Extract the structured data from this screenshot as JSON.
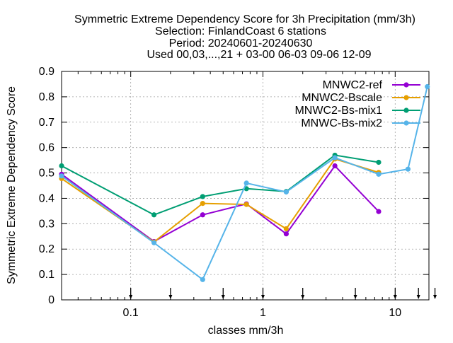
{
  "chart_data": {
    "type": "line",
    "title_lines": [
      "Symmetric Extreme Dependency Score  for 3h Precipitation (mm/3h)",
      "Selection: FinlandCoast      6 stations",
      "Period: 20240601-20240630",
      "Used 00,03,...,21 + 03-00 06-03 09-06 12-09"
    ],
    "xlabel": "classes mm/3h",
    "ylabel": "Symmetric Extreme Dependency Score",
    "x_scale": "log",
    "xlim": [
      0.03,
      18
    ],
    "ylim": [
      0,
      0.9
    ],
    "grid": true,
    "legend_position": "top-right",
    "x_ticks": [
      {
        "value": 0.1,
        "label": "0.1"
      },
      {
        "value": 1,
        "label": "1"
      },
      {
        "value": 10,
        "label": "10"
      }
    ],
    "y_ticks": [
      {
        "value": 0,
        "label": "0"
      },
      {
        "value": 0.1,
        "label": "0.1"
      },
      {
        "value": 0.2,
        "label": "0.2"
      },
      {
        "value": 0.3,
        "label": "0.3"
      },
      {
        "value": 0.4,
        "label": "0.4"
      },
      {
        "value": 0.5,
        "label": "0.5"
      },
      {
        "value": 0.6,
        "label": "0.6"
      },
      {
        "value": 0.7,
        "label": "0.7"
      },
      {
        "value": 0.8,
        "label": "0.8"
      },
      {
        "value": 0.9,
        "label": "0.9"
      }
    ],
    "class_markers": [
      0.1,
      0.2,
      0.5,
      1,
      2,
      5,
      10,
      15,
      20
    ],
    "series": [
      {
        "name": "MNWC2-ref",
        "color": "#9400d3",
        "marker": "filled-circle",
        "points": [
          [
            0.03,
            0.495
          ],
          [
            0.15,
            0.23
          ],
          [
            0.35,
            0.335
          ],
          [
            0.75,
            0.378
          ],
          [
            1.5,
            0.26
          ],
          [
            3.5,
            0.528
          ],
          [
            7.5,
            0.348
          ]
        ]
      },
      {
        "name": "MNWC2-Bscale",
        "color": "#e69f00",
        "marker": "filled-circle",
        "points": [
          [
            0.03,
            0.478
          ],
          [
            0.15,
            0.228
          ],
          [
            0.35,
            0.38
          ],
          [
            0.75,
            0.376
          ],
          [
            1.5,
            0.28
          ],
          [
            3.5,
            0.555
          ],
          [
            7.5,
            0.502
          ]
        ]
      },
      {
        "name": "MNWC2-Bs-mix1",
        "color": "#009e73",
        "marker": "filled-circle",
        "points": [
          [
            0.03,
            0.528
          ],
          [
            0.15,
            0.335
          ],
          [
            0.35,
            0.407
          ],
          [
            0.75,
            0.438
          ],
          [
            1.5,
            0.427
          ],
          [
            3.5,
            0.57
          ],
          [
            7.5,
            0.542
          ]
        ]
      },
      {
        "name": "MNWC-Bs-mix2",
        "color": "#56b4e9",
        "marker": "filled-circle",
        "points": [
          [
            0.03,
            0.488
          ],
          [
            0.15,
            0.225
          ],
          [
            0.35,
            0.08
          ],
          [
            0.75,
            0.46
          ],
          [
            1.5,
            0.425
          ],
          [
            3.5,
            0.56
          ],
          [
            7.5,
            0.495
          ],
          [
            12.5,
            0.515
          ],
          [
            17.5,
            0.84
          ]
        ]
      }
    ]
  }
}
